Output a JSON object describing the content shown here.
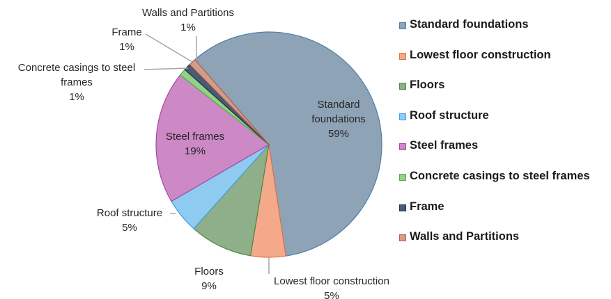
{
  "chart_data": {
    "type": "pie",
    "categories": [
      "Standard foundations",
      "Lowest floor construction",
      "Floors",
      "Roof structure",
      "Steel frames",
      "Concrete casings to steel frames",
      "Frame",
      "Walls and Partitions"
    ],
    "values": [
      59,
      5,
      9,
      5,
      19,
      1,
      1,
      1
    ],
    "value_labels": [
      "59%",
      "5%",
      "9%",
      "5%",
      "19%",
      "1%",
      "1%",
      "1%"
    ],
    "colors": [
      "#8fa3b7",
      "#f5a98b",
      "#8fae8a",
      "#8fcbf1",
      "#cc89c5",
      "#93d286",
      "#4a5a70",
      "#d59c8a"
    ],
    "legend": "right"
  }
}
